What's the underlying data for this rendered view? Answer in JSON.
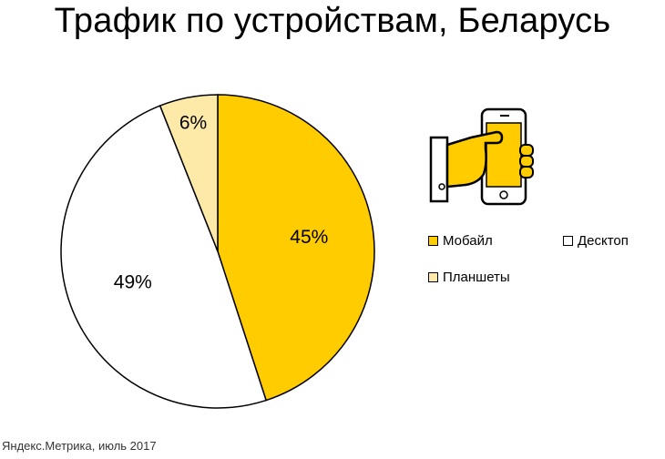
{
  "title": "Трафик по устройствам, Беларусь",
  "source": "Яндекс.Метрика, июль 2017",
  "icon": "hand-holding-phone-icon",
  "colors": {
    "mobile": "#ffcc00",
    "desktop": "#ffffff",
    "tablet": "#fde9a8",
    "stroke": "#000000"
  },
  "chart_data": {
    "type": "pie",
    "title": "Трафик по устройствам, Беларусь",
    "slices": [
      {
        "name": "Мобайл",
        "value": 45,
        "label": "45%",
        "color": "#ffcc00"
      },
      {
        "name": "Десктоп",
        "value": 49,
        "label": "49%",
        "color": "#ffffff"
      },
      {
        "name": "Планшеты",
        "value": 6,
        "label": "6%",
        "color": "#fde9a8"
      }
    ],
    "start": "12 o'clock",
    "direction": "clockwise",
    "legend_position": "right"
  },
  "legend": [
    {
      "label": "Мобайл",
      "color": "#ffcc00"
    },
    {
      "label": "Десктоп",
      "color": "#ffffff"
    },
    {
      "label": "Планшеты",
      "color": "#fde9a8"
    }
  ]
}
